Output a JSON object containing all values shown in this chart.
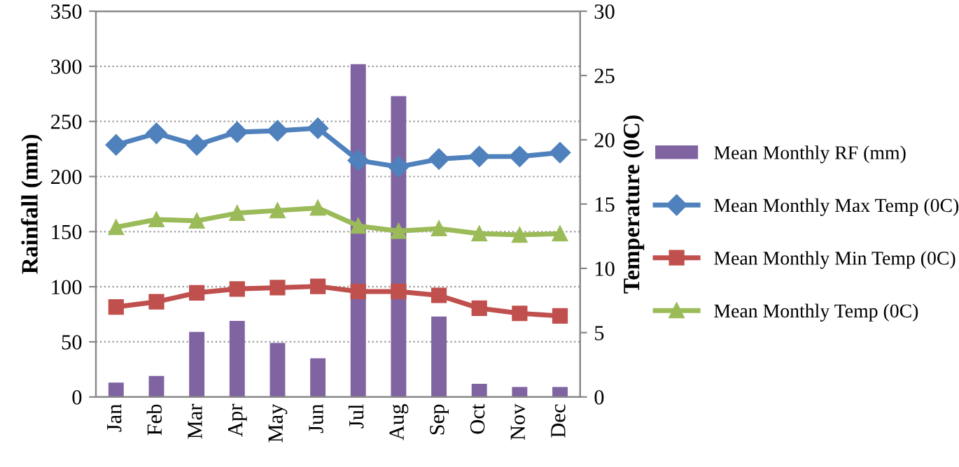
{
  "chart_data": {
    "type": "bar",
    "ylabel": "Rainfall (mm)",
    "y2label": "Temperature (0C)",
    "categories": [
      "Jan",
      "Feb",
      "Mar",
      "Apr",
      "May",
      "Jun",
      "Jul",
      "Aug",
      "Sep",
      "Oct",
      "Nov",
      "Dec"
    ],
    "series": [
      {
        "name": "Mean Monthly RF (mm)",
        "color": "#8064a2",
        "values": [
          13,
          19,
          59,
          69,
          49,
          35,
          302,
          273,
          73,
          12,
          9,
          9
        ]
      },
      {
        "name": "Mean Monthly Max Temp (0C)",
        "type": "line",
        "axis": "y2",
        "marker": "diamond",
        "color": "#4f81bd",
        "values": [
          19.6,
          20.5,
          19.6,
          20.6,
          20.7,
          20.9,
          18.4,
          17.9,
          18.5,
          18.7,
          18.7,
          19.0
        ]
      },
      {
        "name": "Mean Monthly Min Temp (0C)",
        "type": "line",
        "axis": "y2",
        "marker": "square",
        "color": "#c0504d",
        "values": [
          7.0,
          7.4,
          8.1,
          8.4,
          8.5,
          8.6,
          8.2,
          8.2,
          7.9,
          6.9,
          6.5,
          6.3
        ]
      },
      {
        "name": "Mean Monthly Temp (0C)",
        "type": "line",
        "axis": "y2",
        "marker": "triangle",
        "color": "#9bbb59",
        "values": [
          13.2,
          13.8,
          13.7,
          14.3,
          14.5,
          14.7,
          13.3,
          12.9,
          13.1,
          12.7,
          12.6,
          12.7
        ]
      }
    ],
    "ylim": [
      0,
      350
    ],
    "yticks": [
      0,
      50,
      100,
      150,
      200,
      250,
      300,
      350
    ],
    "y2lim": [
      0,
      30
    ],
    "y2ticks": [
      0,
      5,
      10,
      15,
      20,
      25,
      30
    ],
    "grid": "y",
    "legend": "right"
  }
}
